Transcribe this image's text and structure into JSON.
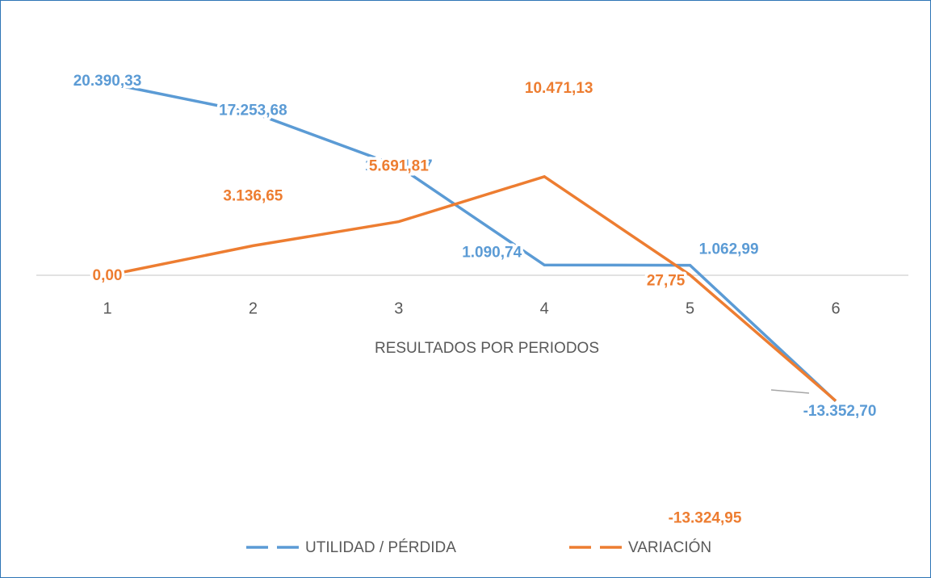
{
  "chart_data": {
    "type": "line",
    "x_label": "RESULTADOS POR PERIODOS",
    "categories": [
      "1",
      "2",
      "3",
      "4",
      "5",
      "6"
    ],
    "series": [
      {
        "name": "UTILIDAD / PÉRDIDA",
        "color": "#5b9bd5",
        "values": [
          20390.33,
          17253.68,
          11561.87,
          1090.74,
          1062.99,
          -13352.7
        ],
        "value_labels": [
          "20.390,33",
          "17.253,68",
          "11.561,87",
          "1.090,74",
          "1.062,99",
          "-13.352,70"
        ]
      },
      {
        "name": "VARIACIÓN",
        "color": "#ed7d31",
        "values": [
          0,
          3136.65,
          5691.81,
          10471.13,
          27.75,
          -13324.95
        ],
        "value_labels": [
          "0,00",
          "3.136,65",
          "5.691,81",
          "10.471,13",
          "27,75",
          "-13.324,95"
        ]
      }
    ],
    "legend": "bottom"
  }
}
